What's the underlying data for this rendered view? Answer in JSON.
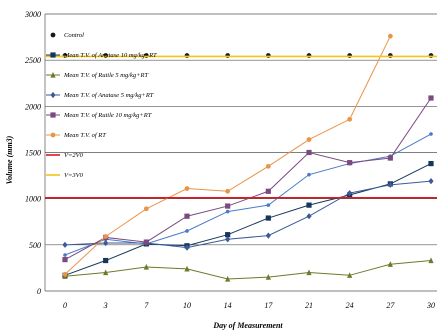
{
  "chart_data": {
    "type": "line",
    "title": "",
    "xlabel": "Day of Measurement",
    "ylabel": "Volume (mm3)",
    "x": [
      0,
      3,
      7,
      10,
      14,
      17,
      21,
      24,
      27,
      30
    ],
    "x_tick_labels": [
      "0",
      "3",
      "7",
      "10",
      "14",
      "17",
      "21",
      "24",
      "27",
      "30"
    ],
    "ylim": [
      0,
      3000
    ],
    "y_ticks": [
      0,
      500,
      1000,
      1500,
      2000,
      2500,
      3000
    ],
    "grid": "horizontal",
    "legend_position": "top-left",
    "series": [
      {
        "name": "Control",
        "style": "markers",
        "color": "#1a1a1a",
        "marker": "circle",
        "values": [
          2550,
          2550,
          2550,
          2550,
          2550,
          2550,
          2550,
          2550,
          2550,
          2550
        ]
      },
      {
        "name": "Mean T.V. of Anatase 10 mg/kg+RT",
        "style": "line",
        "color": "#16365c",
        "marker": "square",
        "values": [
          170,
          330,
          510,
          490,
          610,
          790,
          930,
          1040,
          1160,
          1380
        ]
      },
      {
        "name": "Mean T.V. of Rutile 5 mg/kg+RT",
        "style": "line",
        "color": "#6b7a2b",
        "marker": "triangle",
        "values": [
          160,
          200,
          260,
          240,
          130,
          150,
          200,
          170,
          290,
          330
        ]
      },
      {
        "name": "Mean T.V. of Anatase 5 mg/kg+RT",
        "style": "line",
        "color": "#3c5a9a",
        "marker": "diamond",
        "values": [
          500,
          520,
          520,
          470,
          560,
          600,
          810,
          1060,
          1150,
          1190
        ]
      },
      {
        "name": "Mean T.V. of Rutile 10 mg/kg+RT",
        "style": "line",
        "color": "#7a4a80",
        "marker": "square",
        "values": [
          340,
          580,
          530,
          810,
          920,
          1080,
          1500,
          1390,
          1440,
          2090
        ]
      },
      {
        "name": "Mean T.V. of RT",
        "style": "line",
        "color": "#e8954a",
        "marker": "circle",
        "values": [
          180,
          590,
          890,
          1110,
          1080,
          1350,
          1640,
          1860,
          2760,
          null
        ]
      },
      {
        "name": "V=2V0",
        "style": "hline",
        "color": "#e0191e",
        "marker": "none",
        "values": [
          1010,
          1010,
          1010,
          1010,
          1010,
          1010,
          1010,
          1010,
          1010,
          1010
        ]
      },
      {
        "name": "V=3V0",
        "style": "hline",
        "color": "#f5c518",
        "marker": "none",
        "values": [
          2540,
          2540,
          2540,
          2540,
          2540,
          2540,
          2540,
          2540,
          2540,
          2540
        ]
      }
    ],
    "extra_lines": [
      {
        "color": "#4a79c8",
        "values": [
          390,
          560,
          510,
          650,
          860,
          930,
          1260,
          1380,
          1460,
          1700
        ]
      }
    ]
  }
}
